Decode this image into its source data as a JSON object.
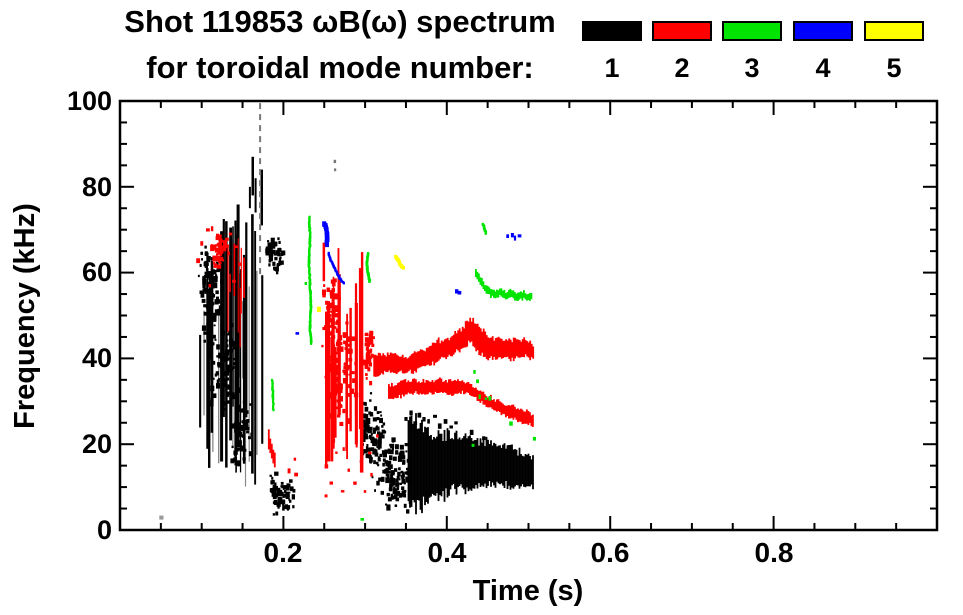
{
  "title": {
    "line1": "Shot 119853 ωB(ω) spectrum",
    "line2": "for toroidal mode number:"
  },
  "legend": {
    "items": [
      {
        "label": "1",
        "color": "#000000"
      },
      {
        "label": "2",
        "color": "#ff0000"
      },
      {
        "label": "3",
        "color": "#00e400"
      },
      {
        "label": "4",
        "color": "#0000ff"
      },
      {
        "label": "5",
        "color": "#ffff00"
      }
    ]
  },
  "axes": {
    "x": {
      "label": "Time (s)",
      "tick_labels": [
        "0.2",
        "0.4",
        "0.6",
        "0.8"
      ]
    },
    "y": {
      "label": "Frequency (kHz)",
      "tick_labels": [
        "0",
        "20",
        "40",
        "60",
        "80",
        "100"
      ]
    }
  },
  "chart_data": {
    "type": "scatter",
    "title": "Shot 119853 ωB(ω) spectrum for toroidal mode number",
    "xlabel": "Time (s)",
    "ylabel": "Frequency (kHz)",
    "xlim": [
      0,
      1.0
    ],
    "ylim": [
      0,
      100
    ],
    "x_major_ticks": [
      0.2,
      0.4,
      0.6,
      0.8
    ],
    "x_minor_step": 0.05,
    "y_major_ticks": [
      0,
      20,
      40,
      60,
      80,
      100
    ],
    "y_minor_step": 5,
    "grid": false,
    "legend_position": "top-right",
    "series": [
      {
        "mode_number": 1,
        "label": "1",
        "color": "#000000",
        "summary": "bursting chirps t=0.09-0.21s f=5-100kHz, then broad band t=0.30-0.51s f=5-30kHz"
      },
      {
        "mode_number": 2,
        "label": "2",
        "color": "#ff0000",
        "summary": "cluster t=0.10-0.15s f=55-70kHz, burst t=0.25-0.31s f=10-68kHz, bands at ~42kHz and 33->26kHz until t=0.51s"
      },
      {
        "mode_number": 3,
        "label": "3",
        "color": "#00e400",
        "summary": "chirp t=0.23s f=44-73kHz, curl t=0.30s f=58-65kHz, band ~54-60kHz t=0.43-0.50s"
      },
      {
        "mode_number": 4,
        "label": "4",
        "color": "#0000ff",
        "summary": "descending chirp t=0.25-0.27s f=72->58kHz, dots ~68kHz t=0.47-0.49s"
      },
      {
        "mode_number": 5,
        "label": "5",
        "color": "#ffff00",
        "summary": "short dash t=0.34s f=61-64kHz, speck t=0.24s f=52kHz"
      }
    ],
    "features": [
      {
        "series": 1,
        "shape": "streaks",
        "t": [
          0.1,
          0.178
        ],
        "f_top": [
          50,
          72
        ],
        "f_bot": [
          10,
          40
        ],
        "count": 10,
        "w": [
          0.8,
          1.6
        ],
        "color": "#888888"
      },
      {
        "series": 1,
        "shape": "streaks",
        "t": [
          0.091,
          0.155
        ],
        "f_top": [
          45,
          75
        ],
        "f_bot": [
          12,
          45
        ],
        "count": 16,
        "w": [
          1.2,
          3
        ]
      },
      {
        "series": 1,
        "shape": "streaks",
        "t": [
          0.135,
          0.178
        ],
        "f_top": [
          55,
          76
        ],
        "f_bot": [
          5,
          30
        ],
        "count": 12,
        "w": [
          1.2,
          3
        ]
      },
      {
        "series": 1,
        "shape": "blob",
        "t_center": 0.113,
        "f_center": 53,
        "t_radius": 0.016,
        "f_radius": 11,
        "count": 70
      },
      {
        "series": 1,
        "shape": "blob",
        "t_center": 0.105,
        "f_center": 60,
        "t_radius": 0.01,
        "f_radius": 8,
        "count": 35
      },
      {
        "series": 1,
        "shape": "blob",
        "t_center": 0.128,
        "f_center": 37,
        "t_radius": 0.018,
        "f_radius": 13,
        "count": 80
      },
      {
        "series": 1,
        "shape": "blob",
        "t_center": 0.148,
        "f_center": 24,
        "t_radius": 0.014,
        "f_radius": 10,
        "count": 50
      },
      {
        "series": 1,
        "shape": "vline",
        "t": 0.1625,
        "f": [
          78,
          87
        ],
        "w": 2.5
      },
      {
        "series": 1,
        "shape": "vline",
        "t": 0.166,
        "f": [
          74,
          82
        ],
        "w": 2
      },
      {
        "series": 1,
        "shape": "vline",
        "t": 0.1735,
        "f": [
          71,
          84
        ],
        "w": 2.5
      },
      {
        "series": 1,
        "shape": "vline",
        "t": 0.1715,
        "f": [
          60,
          99.5
        ],
        "w": 2,
        "dash": true,
        "color": "#777777"
      },
      {
        "series": 1,
        "shape": "vline",
        "t": 0.159,
        "f": [
          75,
          80
        ],
        "w": 2
      },
      {
        "series": 1,
        "shape": "blob",
        "t_center": 0.184,
        "f_center": 65,
        "t_radius": 0.006,
        "f_radius": 4,
        "count": 22
      },
      {
        "series": 1,
        "shape": "blob",
        "t_center": 0.1935,
        "f_center": 64,
        "t_radius": 0.007,
        "f_radius": 5,
        "count": 26
      },
      {
        "series": 1,
        "shape": "blob",
        "t_center": 0.2,
        "f_center": 7.5,
        "t_radius": 0.016,
        "f_radius": 4.5,
        "count": 60
      },
      {
        "series": 1,
        "shape": "blob",
        "t_center": 0.188,
        "f_center": 11,
        "t_radius": 0.005,
        "f_radius": 4,
        "count": 14
      },
      {
        "series": 1,
        "shape": "blob",
        "t_center": 0.302,
        "f_center": 24,
        "t_radius": 0.009,
        "f_radius": 9,
        "count": 45
      },
      {
        "series": 1,
        "shape": "blob",
        "t_center": 0.316,
        "f_center": 19,
        "t_radius": 0.012,
        "f_radius": 11,
        "count": 60
      },
      {
        "series": 1,
        "shape": "blob",
        "t_center": 0.332,
        "f_center": 14,
        "t_radius": 0.013,
        "f_radius": 10,
        "count": 60
      },
      {
        "series": 1,
        "shape": "blob",
        "t_center": 0.347,
        "f_center": 12,
        "t_radius": 0.012,
        "f_radius": 9,
        "count": 50
      },
      {
        "series": 1,
        "shape": "dots",
        "points": [
          [
            0.35,
            26
          ],
          [
            0.356,
            27.5
          ],
          [
            0.361,
            25
          ],
          [
            0.366,
            27
          ],
          [
            0.372,
            26
          ],
          [
            0.378,
            25.5
          ],
          [
            0.385,
            26.5
          ],
          [
            0.391,
            24.5
          ],
          [
            0.398,
            25.5
          ],
          [
            0.405,
            24
          ],
          [
            0.411,
            25
          ],
          [
            0.43,
            23
          ],
          [
            0.445,
            21.5
          ],
          [
            0.212,
            8
          ]
        ],
        "size": 3
      },
      {
        "series": 1,
        "shape": "band",
        "points": [
          [
            0.352,
            16,
            20
          ],
          [
            0.37,
            15,
            18
          ],
          [
            0.39,
            15,
            14
          ],
          [
            0.41,
            16,
            12
          ],
          [
            0.43,
            15.5,
            11
          ],
          [
            0.45,
            15.5,
            10
          ],
          [
            0.47,
            15,
            9
          ],
          [
            0.49,
            14,
            8
          ],
          [
            0.505,
            13.5,
            7
          ]
        ]
      },
      {
        "series": 1,
        "shape": "dots",
        "points": [
          [
            0.05,
            3
          ]
        ],
        "size": 3,
        "color": "#999999"
      },
      {
        "series": 1,
        "shape": "dots",
        "points": [
          [
            0.263,
            86
          ],
          [
            0.2635,
            84
          ]
        ],
        "size": 2.5,
        "color": "#777777"
      },
      {
        "series": 2,
        "shape": "blob",
        "t_center": 0.122,
        "f_center": 65.5,
        "t_radius": 0.013,
        "f_radius": 4.5,
        "count": 50
      },
      {
        "series": 2,
        "shape": "dots",
        "points": [
          [
            0.095,
            63
          ],
          [
            0.1,
            67
          ],
          [
            0.107,
            70
          ],
          [
            0.113,
            70.5
          ],
          [
            0.135,
            69
          ],
          [
            0.142,
            66
          ],
          [
            0.147,
            62
          ],
          [
            0.11,
            57
          ],
          [
            0.139,
            58
          ]
        ],
        "size": 2.8
      },
      {
        "series": 2,
        "shape": "streaks",
        "t": [
          0.128,
          0.152
        ],
        "f_top": [
          55,
          70
        ],
        "f_bot": [
          42,
          56
        ],
        "count": 7,
        "w": [
          1,
          2
        ]
      },
      {
        "series": 2,
        "shape": "band",
        "points": [
          [
            0.181,
            21,
            4
          ],
          [
            0.185,
            18,
            3
          ],
          [
            0.19,
            15.5,
            3
          ]
        ]
      },
      {
        "series": 2,
        "shape": "dots",
        "points": [
          [
            0.207,
            14
          ],
          [
            0.2145,
            16.5
          ],
          [
            0.215,
            13
          ]
        ],
        "size": 3
      },
      {
        "series": 2,
        "shape": "streaks",
        "t": [
          0.247,
          0.297
        ],
        "f_top": [
          40,
          66
        ],
        "f_bot": [
          12,
          30
        ],
        "count": 20,
        "w": [
          1.5,
          3.5
        ]
      },
      {
        "series": 2,
        "shape": "blob",
        "t_center": 0.27,
        "f_center": 38,
        "t_radius": 0.02,
        "f_radius": 14,
        "count": 90
      },
      {
        "series": 2,
        "shape": "blob",
        "t_center": 0.258,
        "f_center": 50,
        "t_radius": 0.012,
        "f_radius": 10,
        "count": 50
      },
      {
        "series": 2,
        "shape": "vline",
        "t": 0.2495,
        "f": [
          58,
          67
        ],
        "w": 2.5
      },
      {
        "series": 2,
        "shape": "blob",
        "t_center": 0.305,
        "f_center": 41,
        "t_radius": 0.007,
        "f_radius": 7,
        "count": 40
      },
      {
        "series": 2,
        "shape": "band",
        "points": [
          [
            0.31,
            38,
            5
          ],
          [
            0.33,
            39,
            4
          ],
          [
            0.35,
            38.5,
            4
          ],
          [
            0.37,
            40,
            4
          ],
          [
            0.39,
            42,
            4.5
          ],
          [
            0.405,
            43,
            4
          ],
          [
            0.42,
            45,
            5
          ],
          [
            0.428,
            46.5,
            5
          ],
          [
            0.438,
            44.5,
            6
          ],
          [
            0.45,
            42.5,
            5
          ],
          [
            0.465,
            42.5,
            4
          ],
          [
            0.48,
            42,
            4.5
          ],
          [
            0.495,
            42.5,
            4
          ],
          [
            0.505,
            41.5,
            3.5
          ]
        ]
      },
      {
        "series": 2,
        "shape": "band",
        "points": [
          [
            0.328,
            32,
            3
          ],
          [
            0.345,
            33,
            3.5
          ],
          [
            0.36,
            33.5,
            3
          ],
          [
            0.375,
            33,
            3
          ],
          [
            0.39,
            33.5,
            3
          ],
          [
            0.405,
            33,
            3
          ],
          [
            0.418,
            33.5,
            3
          ],
          [
            0.428,
            33,
            2.5
          ],
          [
            0.44,
            31,
            2.5
          ],
          [
            0.455,
            29.5,
            2.5
          ],
          [
            0.47,
            28,
            2.5
          ],
          [
            0.485,
            27,
            3
          ],
          [
            0.5,
            26,
            3
          ],
          [
            0.506,
            25.5,
            2.5
          ]
        ]
      },
      {
        "series": 2,
        "shape": "dots",
        "points": [
          [
            0.252,
            15
          ],
          [
            0.258,
            11
          ],
          [
            0.265,
            18
          ],
          [
            0.272,
            9
          ],
          [
            0.28,
            14
          ],
          [
            0.287,
            11
          ],
          [
            0.295,
            16
          ],
          [
            0.3,
            9
          ],
          [
            0.308,
            13
          ],
          [
            0.252,
            8
          ],
          [
            0.262,
            21
          ],
          [
            0.274,
            19
          ],
          [
            0.29,
            20
          ],
          [
            0.305,
            18
          ],
          [
            0.315,
            22
          ]
        ],
        "size": 2.6
      },
      {
        "series": 3,
        "shape": "polyline",
        "points": [
          [
            0.2315,
            73
          ],
          [
            0.2327,
            68
          ],
          [
            0.2313,
            63
          ],
          [
            0.2325,
            58
          ],
          [
            0.2337,
            52
          ],
          [
            0.2325,
            47
          ],
          [
            0.234,
            43.5
          ]
        ],
        "w": 2.2
      },
      {
        "series": 3,
        "shape": "polyline",
        "points": [
          [
            0.3035,
            64.5
          ],
          [
            0.3022,
            62
          ],
          [
            0.304,
            59.5
          ],
          [
            0.3057,
            58
          ]
        ],
        "w": 2.4
      },
      {
        "series": 3,
        "shape": "polyline",
        "points": [
          [
            0.4445,
            71.3
          ],
          [
            0.4478,
            69.2
          ]
        ],
        "w": 2.4
      },
      {
        "series": 3,
        "shape": "polyline",
        "points": [
          [
            0.1865,
            35
          ],
          [
            0.1872,
            31
          ],
          [
            0.1878,
            28
          ]
        ],
        "w": 2
      },
      {
        "series": 3,
        "shape": "band",
        "points": [
          [
            0.4345,
            60,
            1.6
          ],
          [
            0.439,
            58.3,
            1.6
          ],
          [
            0.4435,
            57,
            1.6
          ],
          [
            0.448,
            56,
            1.8
          ],
          [
            0.4535,
            55.4,
            1.8
          ],
          [
            0.459,
            54.8,
            1.6
          ],
          [
            0.465,
            55.3,
            1.6
          ],
          [
            0.4715,
            54.6,
            1.8
          ],
          [
            0.478,
            55,
            1.6
          ],
          [
            0.4855,
            54.4,
            1.8
          ],
          [
            0.4925,
            54.8,
            1.6
          ],
          [
            0.5,
            54.2,
            1.8
          ],
          [
            0.5035,
            54.5,
            1.6
          ]
        ]
      },
      {
        "series": 3,
        "shape": "dots",
        "points": [
          [
            0.434,
            37
          ],
          [
            0.4375,
            34.8
          ],
          [
            0.4405,
            31.3
          ],
          [
            0.448,
            30.6
          ],
          [
            0.4525,
            30.9
          ],
          [
            0.478,
            25
          ],
          [
            0.507,
            21.4
          ],
          [
            0.432,
            19.8
          ],
          [
            0.296,
            2.5
          ],
          [
            0.2275,
            57.5
          ]
        ],
        "size": 2.6
      },
      {
        "series": 4,
        "shape": "polyline",
        "points": [
          [
            0.2505,
            71.5
          ],
          [
            0.2522,
            70.2
          ],
          [
            0.2538,
            68.2
          ],
          [
            0.2528,
            66.6
          ]
        ],
        "w": 4
      },
      {
        "series": 4,
        "shape": "polyline",
        "points": [
          [
            0.2552,
            64.6
          ],
          [
            0.258,
            63
          ],
          [
            0.2615,
            61.5
          ],
          [
            0.2655,
            60
          ],
          [
            0.2695,
            58.6
          ],
          [
            0.2735,
            57.6
          ]
        ],
        "w": 2.2
      },
      {
        "series": 4,
        "shape": "dots",
        "points": [
          [
            0.4745,
            68.6
          ],
          [
            0.4802,
            68.9
          ],
          [
            0.4838,
            68.3
          ],
          [
            0.4885,
            68.6
          ],
          [
            0.4118,
            55.8
          ],
          [
            0.4148,
            55.4
          ],
          [
            0.2165,
            45.8
          ]
        ],
        "size": 2.8
      },
      {
        "series": 5,
        "shape": "polyline",
        "points": [
          [
            0.3378,
            63.8
          ],
          [
            0.3405,
            63
          ],
          [
            0.3438,
            61.8
          ],
          [
            0.3465,
            61.2
          ]
        ],
        "w": 3
      },
      {
        "series": 5,
        "shape": "dots",
        "points": [
          [
            0.2428,
            51.7
          ]
        ],
        "size": 3
      }
    ]
  },
  "plot_colors": {
    "axis": "#000000",
    "background": "#ffffff"
  }
}
